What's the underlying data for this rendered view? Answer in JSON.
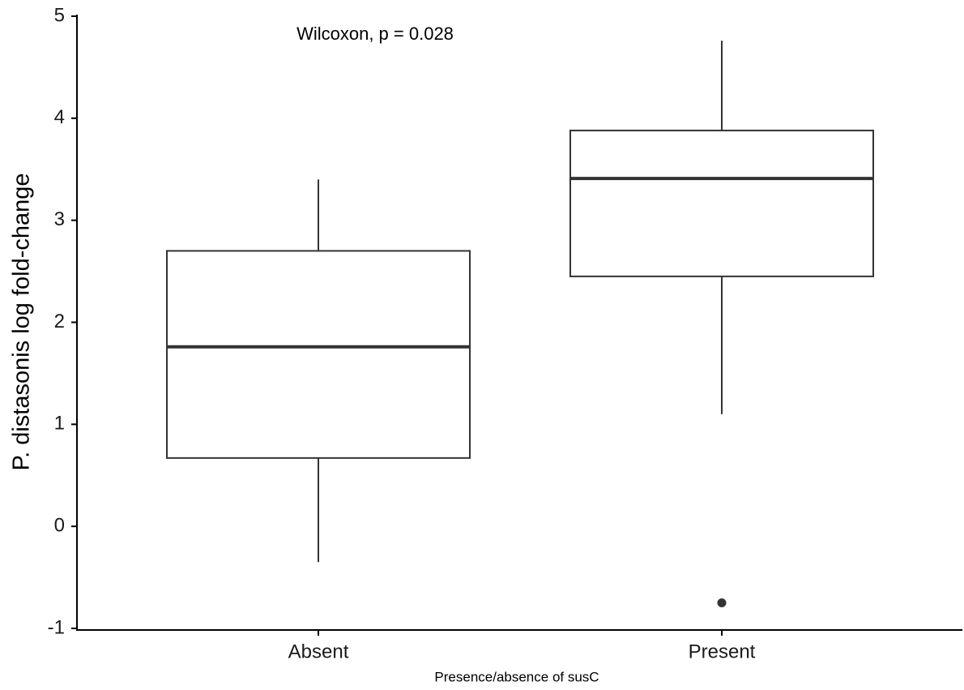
{
  "chart_data": {
    "type": "boxplot",
    "title": "",
    "xlabel": "Presence/absence of susC",
    "ylabel": "P. distasonis log fold-change",
    "ylim": [
      -1,
      5
    ],
    "yticks": [
      -1,
      0,
      1,
      2,
      3,
      4,
      5
    ],
    "grid": false,
    "legend": "none",
    "categories": [
      "Absent",
      "Present"
    ],
    "boxes": [
      {
        "category": "Absent",
        "whisker_low": -0.35,
        "q1": 0.67,
        "median": 1.76,
        "q3": 2.7,
        "whisker_high": 3.4,
        "outliers": []
      },
      {
        "category": "Present",
        "whisker_low": 1.1,
        "q1": 2.45,
        "median": 3.41,
        "q3": 3.88,
        "whisker_high": 4.76,
        "outliers": [
          -0.75
        ]
      }
    ],
    "annotations": [
      {
        "text": "Wilcoxon, p = 0.028"
      }
    ]
  }
}
